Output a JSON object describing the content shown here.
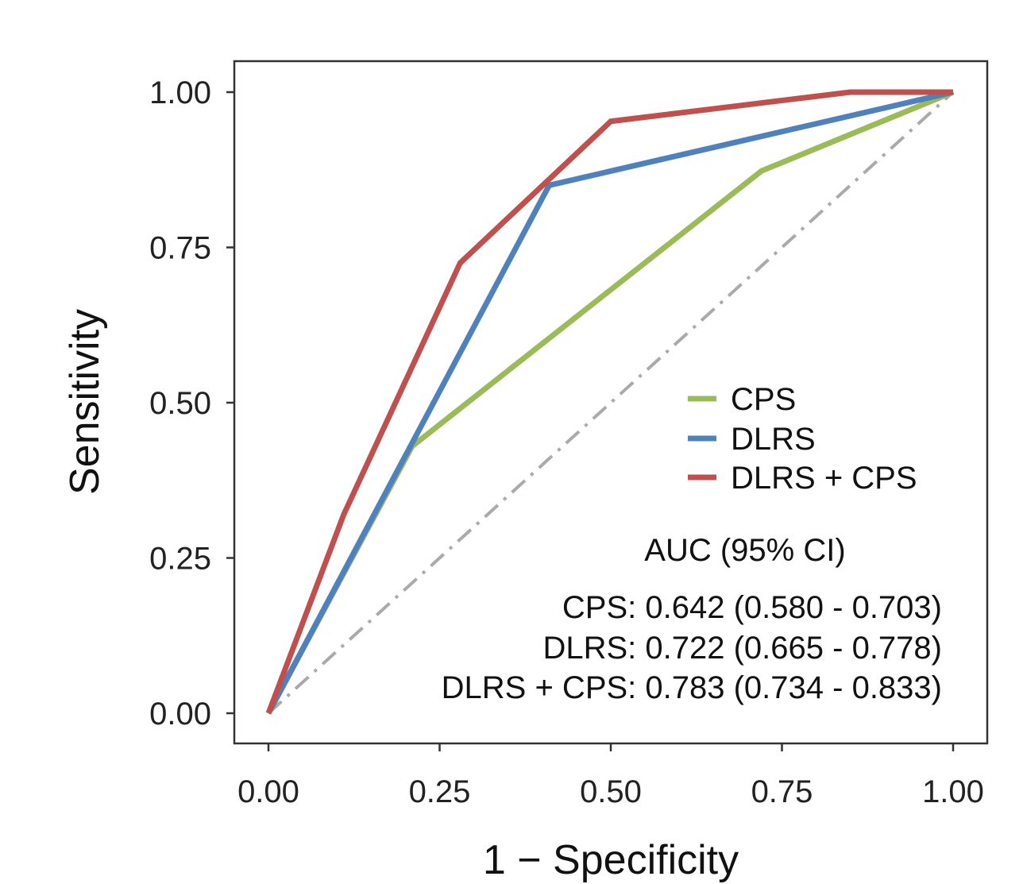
{
  "chart_data": {
    "type": "line",
    "title": "",
    "xlabel": "1 − Specificity",
    "ylabel": "Sensitivity",
    "xlim": [
      0,
      1
    ],
    "ylim": [
      0,
      1
    ],
    "xticks": [
      "0.00",
      "0.25",
      "0.50",
      "0.75",
      "1.00"
    ],
    "yticks": [
      "0.00",
      "0.25",
      "0.50",
      "0.75",
      "1.00"
    ],
    "xtick_values": [
      0,
      0.25,
      0.5,
      0.75,
      1
    ],
    "ytick_values": [
      0,
      0.25,
      0.5,
      0.75,
      1
    ],
    "grid": false,
    "reference_line": {
      "x": [
        0,
        1
      ],
      "y": [
        0,
        1
      ],
      "style": "dashdot",
      "color": "#aaaaaa"
    },
    "series": [
      {
        "name": "CPS",
        "color": "#9bbb59",
        "x": [
          0,
          0.21,
          0.72,
          1.0
        ],
        "y": [
          0,
          0.43,
          0.873,
          1.0
        ]
      },
      {
        "name": "DLRS",
        "color": "#4f81bd",
        "x": [
          0,
          0.41,
          1.0
        ],
        "y": [
          0,
          0.85,
          1.0
        ]
      },
      {
        "name": "DLRS + CPS",
        "color": "#c0504d",
        "x": [
          0,
          0.11,
          0.28,
          0.5,
          0.85,
          1.0
        ],
        "y": [
          0,
          0.32,
          0.725,
          0.953,
          1.0,
          1.0
        ]
      }
    ],
    "legend": {
      "position": "bottom-right",
      "entries": [
        "CPS",
        "DLRS",
        "DLRS + CPS"
      ]
    },
    "annotations": {
      "auc_title": "AUC (95% CI)",
      "auc_lines": [
        "CPS: 0.642 (0.580 - 0.703)",
        "DLRS: 0.722 (0.665 - 0.778)",
        "DLRS + CPS: 0.783 (0.734 - 0.833)"
      ]
    }
  }
}
